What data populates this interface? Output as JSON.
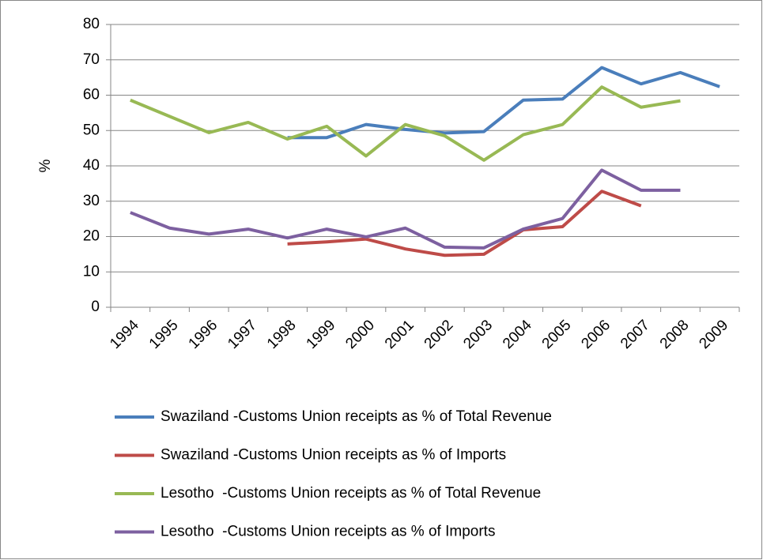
{
  "chart_data": {
    "type": "line",
    "y_label": "%",
    "categories": [
      "1994",
      "1995",
      "1996",
      "1997",
      "1998",
      "1999",
      "2000",
      "2001",
      "2002",
      "2003",
      "2004",
      "2005",
      "2006",
      "2007",
      "2008",
      "2009"
    ],
    "series": [
      {
        "name": "Swaziland -Customs Union receipts as % of Total Revenue",
        "color": "#4a7ebb",
        "values": [
          null,
          null,
          null,
          null,
          48,
          48,
          51.7,
          50.3,
          49.3,
          49.7,
          58.6,
          58.9,
          67.8,
          63.2,
          66.4,
          62.4
        ]
      },
      {
        "name": "Swaziland -Customs Union receipts as % of Imports",
        "color": "#be4b48",
        "values": [
          null,
          null,
          null,
          null,
          17.9,
          18.5,
          19.3,
          16.5,
          14.7,
          15,
          21.9,
          22.8,
          32.8,
          28.7,
          null,
          null
        ]
      },
      {
        "name": "Lesotho  -Customs Union receipts as % of Total Revenue",
        "color": "#98b954",
        "values": [
          58.6,
          54,
          49.4,
          52.3,
          47.6,
          51.2,
          42.8,
          51.7,
          48.5,
          41.6,
          48.8,
          51.7,
          62.3,
          56.6,
          58.4,
          null
        ]
      },
      {
        "name": "Lesotho  -Customs Union receipts as % of Imports",
        "color": "#7d60a0",
        "values": [
          26.8,
          22.4,
          20.7,
          22.1,
          19.6,
          22.1,
          19.9,
          22.4,
          17,
          16.8,
          22.1,
          25.1,
          38.8,
          33.1,
          33.1,
          null
        ]
      }
    ],
    "ylim": [
      0,
      80
    ],
    "yticks": [
      0,
      10,
      20,
      30,
      40,
      50,
      60,
      70,
      80
    ],
    "grid": true,
    "legend": "bottom"
  }
}
